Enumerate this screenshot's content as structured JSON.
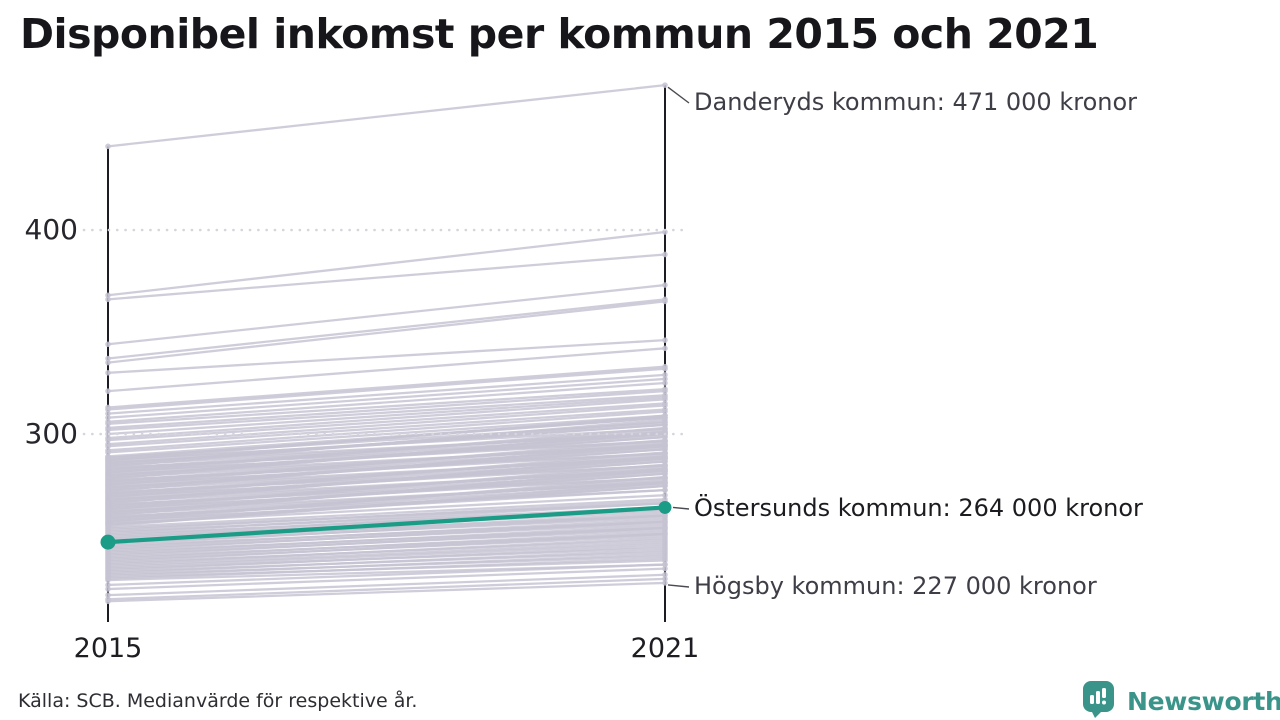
{
  "header": {
    "title": "Disponibel inkomst per kommun 2015 och 2021"
  },
  "chart_data": {
    "type": "slope",
    "title": "Disponibel inkomst per kommun 2015 och 2021",
    "x_categories": [
      "2015",
      "2021"
    ],
    "y_tick_labels": [
      "300",
      "400"
    ],
    "y_tick_values": [
      300,
      400
    ],
    "y_unit_implied_by_labels": "tusen kronor",
    "grid": "dotted-horizontal",
    "highlight_series": {
      "name": "Östersunds kommun",
      "label": "Östersunds kommun: 264 000 kronor",
      "color": "#1b9c86",
      "values_2015_2021": [
        247,
        264
      ]
    },
    "annotations": [
      {
        "key": "danderyd",
        "text": "Danderyds kommun: 471 000 kronor",
        "year": "2021",
        "value": 471
      },
      {
        "key": "hogsby",
        "text": "Högsby kommun: 227 000 kronor",
        "year": "2021",
        "value": 227
      }
    ],
    "background_series_2015_2021": [
      [
        441,
        471
      ],
      [
        368,
        399
      ],
      [
        366,
        388
      ],
      [
        344,
        373
      ],
      [
        337,
        366
      ],
      [
        335,
        365
      ],
      [
        330,
        346
      ],
      [
        321,
        342
      ],
      [
        313,
        333
      ],
      [
        312,
        332
      ],
      [
        310,
        329
      ],
      [
        308,
        327
      ],
      [
        306,
        325
      ],
      [
        305,
        322
      ],
      [
        303,
        321
      ],
      [
        302,
        319
      ],
      [
        300,
        318
      ],
      [
        298,
        317
      ],
      [
        297,
        315
      ],
      [
        295,
        314
      ],
      [
        294,
        312
      ],
      [
        292,
        311
      ],
      [
        291,
        309
      ],
      [
        289,
        308
      ],
      [
        288.5,
        305.5
      ],
      [
        288,
        308
      ],
      [
        287.5,
        302.5
      ],
      [
        287,
        309
      ],
      [
        286.5,
        304.5
      ],
      [
        286,
        300
      ],
      [
        285.5,
        304.5
      ],
      [
        285,
        306
      ],
      [
        284.5,
        300.5
      ],
      [
        284,
        307
      ],
      [
        283.5,
        296.5
      ],
      [
        283,
        301
      ],
      [
        282.5,
        299.5
      ],
      [
        282,
        302
      ],
      [
        281.5,
        296.5
      ],
      [
        281,
        303
      ],
      [
        280.5,
        298.5
      ],
      [
        280,
        294
      ],
      [
        279.5,
        298.5
      ],
      [
        279,
        300
      ],
      [
        278.5,
        294.5
      ],
      [
        278,
        301
      ],
      [
        277.5,
        290.5
      ],
      [
        277,
        295
      ],
      [
        276.5,
        293.5
      ],
      [
        276,
        296
      ],
      [
        275.5,
        290.5
      ],
      [
        275,
        297
      ],
      [
        274.5,
        292.5
      ],
      [
        274,
        288
      ],
      [
        273.5,
        292.5
      ],
      [
        273,
        294
      ],
      [
        272.5,
        288.5
      ],
      [
        272,
        295
      ],
      [
        271.5,
        284.5
      ],
      [
        271,
        289
      ],
      [
        270.5,
        287.5
      ],
      [
        270,
        290
      ],
      [
        269.5,
        284.5
      ],
      [
        269,
        291
      ],
      [
        268.5,
        286.5
      ],
      [
        268,
        282
      ],
      [
        267.5,
        286.5
      ],
      [
        267,
        288
      ],
      [
        266.5,
        282.5
      ],
      [
        266,
        289
      ],
      [
        265.5,
        278.5
      ],
      [
        265,
        283
      ],
      [
        264.5,
        281.5
      ],
      [
        264,
        284
      ],
      [
        263.5,
        278.5
      ],
      [
        263,
        285
      ],
      [
        262.5,
        280.5
      ],
      [
        262,
        276
      ],
      [
        261.5,
        280.5
      ],
      [
        261,
        282
      ],
      [
        260.5,
        276.5
      ],
      [
        260,
        283
      ],
      [
        259.5,
        272.5
      ],
      [
        259,
        277
      ],
      [
        258.5,
        275.5
      ],
      [
        258,
        278
      ],
      [
        257.5,
        272.5
      ],
      [
        257,
        279
      ],
      [
        256.5,
        274.5
      ],
      [
        256,
        270
      ],
      [
        255.5,
        274.5
      ],
      [
        255,
        276
      ],
      [
        254.3,
        268
      ],
      [
        253.6,
        266
      ],
      [
        252.9,
        267
      ],
      [
        252.2,
        264
      ],
      [
        251.5,
        266
      ],
      [
        250.8,
        263
      ],
      [
        250.1,
        264
      ],
      [
        249.4,
        262
      ],
      [
        248.7,
        263
      ],
      [
        248,
        260
      ],
      [
        247.3,
        261
      ],
      [
        246.6,
        259
      ],
      [
        245.9,
        260
      ],
      [
        245.2,
        257
      ],
      [
        244.5,
        258
      ],
      [
        243.8,
        256
      ],
      [
        243.1,
        257
      ],
      [
        242.4,
        254
      ],
      [
        241.7,
        255
      ],
      [
        241,
        253
      ],
      [
        240.3,
        254
      ],
      [
        239.6,
        251
      ],
      [
        238.9,
        252
      ],
      [
        238.2,
        250
      ],
      [
        237.5,
        251
      ],
      [
        236.8,
        248
      ],
      [
        236.1,
        249
      ],
      [
        235.4,
        247
      ],
      [
        234.7,
        246
      ],
      [
        234,
        244
      ],
      [
        233.3,
        245
      ],
      [
        232.6,
        242
      ],
      [
        231.9,
        243
      ],
      [
        231.2,
        240
      ],
      [
        230.5,
        241
      ],
      [
        229.8,
        238
      ],
      [
        229.1,
        239
      ],
      [
        228.4,
        236
      ],
      [
        226,
        236
      ],
      [
        224,
        234
      ],
      [
        221,
        231
      ],
      [
        219,
        229
      ],
      [
        218,
        227
      ]
    ],
    "colors": {
      "background_line": "#c6c3d2",
      "highlight": "#1b9c86",
      "axis": "#1c1c22",
      "gridline": "#d6d4dd",
      "connector": "#4a4a52"
    }
  },
  "footer": {
    "source": "Källa: SCB. Medianvärde för respektive år."
  },
  "brand": {
    "name": "Newsworthy",
    "color": "#3a948a",
    "icon": "newsworthy-barchart-pin-icon"
  }
}
